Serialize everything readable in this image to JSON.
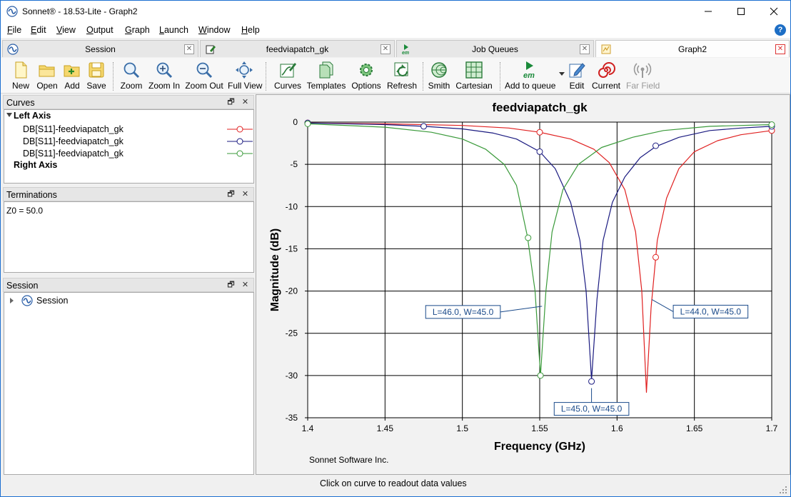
{
  "window": {
    "title": "Sonnet® - 18.53-Lite - Graph2",
    "icon": "sonnet-wave-icon",
    "controls": [
      "minimize-icon",
      "maximize-icon",
      "close-icon"
    ]
  },
  "menubar": {
    "items": [
      {
        "label": "File",
        "accel": "F",
        "rest": "ile"
      },
      {
        "label": "Edit",
        "accel": "E",
        "rest": "dit"
      },
      {
        "label": "View",
        "accel": "V",
        "rest": "iew"
      },
      {
        "label": "Output",
        "accel": "O",
        "rest": "utput"
      },
      {
        "label": "Graph",
        "accel": "G",
        "rest": "raph"
      },
      {
        "label": "Launch",
        "accel": "L",
        "rest": "aunch"
      },
      {
        "label": "Window",
        "accel": "W",
        "rest": "indow"
      },
      {
        "label": "Help",
        "accel": "H",
        "rest": "elp"
      }
    ],
    "help_icon": "?"
  },
  "tabs": [
    {
      "label": "Session",
      "icon": "sonnet-wave-icon",
      "close": "✕"
    },
    {
      "label": "feedviapatch_gk",
      "icon": "project-edit-icon",
      "close": "✕"
    },
    {
      "label": "Job Queues",
      "icon": "em-icon",
      "close": "✕"
    },
    {
      "label": "Graph2",
      "icon": "graph-icon",
      "close": "✕",
      "active": true
    }
  ],
  "toolbar": {
    "new": "New",
    "open": "Open",
    "add": "Add",
    "save": "Save",
    "zoom": "Zoom",
    "zoom_in": "Zoom In",
    "zoom_out": "Zoom Out",
    "full_view": "Full View",
    "curves": "Curves",
    "templates": "Templates",
    "options": "Options",
    "refresh": "Refresh",
    "smith": "Smith",
    "cartesian": "Cartesian",
    "add_to_queue": "Add to queue",
    "edit": "Edit",
    "current": "Current",
    "far_field": "Far Field",
    "em_text": "em"
  },
  "panels": {
    "curves": {
      "title": "Curves",
      "left_axis": "Left Axis",
      "right_axis": "Right Axis",
      "items": [
        {
          "label": "DB[S11]-feedviapatch_gk",
          "color": "#e02020"
        },
        {
          "label": "DB[S11]-feedviapatch_gk",
          "color": "#1a1a80"
        },
        {
          "label": "DB[S11]-feedviapatch_gk",
          "color": "#3a9a3a"
        }
      ]
    },
    "terminations": {
      "title": "Terminations",
      "text": "Z0 = 50.0"
    },
    "session": {
      "title": "Session",
      "item": "Session"
    },
    "float_glyph": "🗗",
    "close_glyph": "✕"
  },
  "graph": {
    "footer": "Sonnet Software Inc."
  },
  "chart_data": {
    "type": "line",
    "title": "feedviapatch_gk",
    "xlabel": "Frequency (GHz)",
    "ylabel": "Magnitude (dB)",
    "xlim": [
      1.4,
      1.7
    ],
    "ylim": [
      -35,
      0
    ],
    "xticks": [
      "1.4",
      "1.45",
      "1.5",
      "1.55",
      "1.6",
      "1.65",
      "1.7"
    ],
    "yticks": [
      "0",
      "-5",
      "-10",
      "-15",
      "-20",
      "-25",
      "-30",
      "-35"
    ],
    "grid": true,
    "series": [
      {
        "name": "DB[S11]-feedviapatch_gk",
        "label": "L=44.0, W=45.0",
        "color": "#e02020",
        "x": [
          1.4,
          1.45,
          1.5,
          1.53,
          1.55,
          1.57,
          1.585,
          1.595,
          1.605,
          1.612,
          1.616,
          1.619,
          1.622,
          1.626,
          1.632,
          1.64,
          1.65,
          1.665,
          1.68,
          1.7
        ],
        "y": [
          -0.1,
          -0.2,
          -0.4,
          -0.7,
          -1.2,
          -2.0,
          -3.2,
          -4.8,
          -8.0,
          -13.0,
          -20.0,
          -32.0,
          -22.0,
          -14.0,
          -9.0,
          -5.5,
          -3.5,
          -2.2,
          -1.5,
          -1.0
        ],
        "markers": [
          [
            1.4,
            -0.1
          ],
          [
            1.55,
            -1.2
          ],
          [
            1.625,
            -16.0
          ],
          [
            1.7,
            -1.0
          ]
        ]
      },
      {
        "name": "DB[S11]-feedviapatch_gk",
        "label": "L=45.0, W=45.0",
        "color": "#1a1a80",
        "x": [
          1.4,
          1.45,
          1.475,
          1.5,
          1.52,
          1.535,
          1.55,
          1.56,
          1.57,
          1.576,
          1.58,
          1.5835,
          1.587,
          1.591,
          1.597,
          1.605,
          1.615,
          1.625,
          1.64,
          1.66,
          1.68,
          1.7
        ],
        "y": [
          -0.1,
          -0.3,
          -0.5,
          -0.8,
          -1.3,
          -2.0,
          -3.5,
          -5.5,
          -9.5,
          -14.0,
          -20.0,
          -30.5,
          -21.0,
          -14.0,
          -9.5,
          -6.5,
          -4.2,
          -2.9,
          -1.8,
          -1.0,
          -0.7,
          -0.5
        ],
        "markers": [
          [
            1.4,
            -0.1
          ],
          [
            1.475,
            -0.5
          ],
          [
            1.55,
            -3.5
          ],
          [
            1.5835,
            -30.7
          ],
          [
            1.625,
            -2.8
          ],
          [
            1.7,
            -0.5
          ]
        ]
      },
      {
        "name": "DB[S11]-feedviapatch_gk",
        "label": "L=46.0, W=45.0",
        "color": "#3a9a3a",
        "x": [
          1.4,
          1.45,
          1.48,
          1.5,
          1.515,
          1.527,
          1.535,
          1.542,
          1.547,
          1.5505,
          1.554,
          1.558,
          1.565,
          1.575,
          1.59,
          1.61,
          1.63,
          1.66,
          1.7
        ],
        "y": [
          -0.2,
          -0.6,
          -1.2,
          -2.0,
          -3.2,
          -5.0,
          -7.5,
          -13.5,
          -20.0,
          -30.0,
          -20.0,
          -13.0,
          -8.0,
          -5.0,
          -3.0,
          -1.8,
          -1.0,
          -0.5,
          -0.3
        ],
        "markers": [
          [
            1.4,
            -0.2
          ],
          [
            1.5425,
            -13.7
          ],
          [
            1.5505,
            -30.0
          ],
          [
            1.7,
            -0.3
          ]
        ]
      }
    ]
  },
  "status": {
    "text": "Click on curve to readout data values"
  }
}
